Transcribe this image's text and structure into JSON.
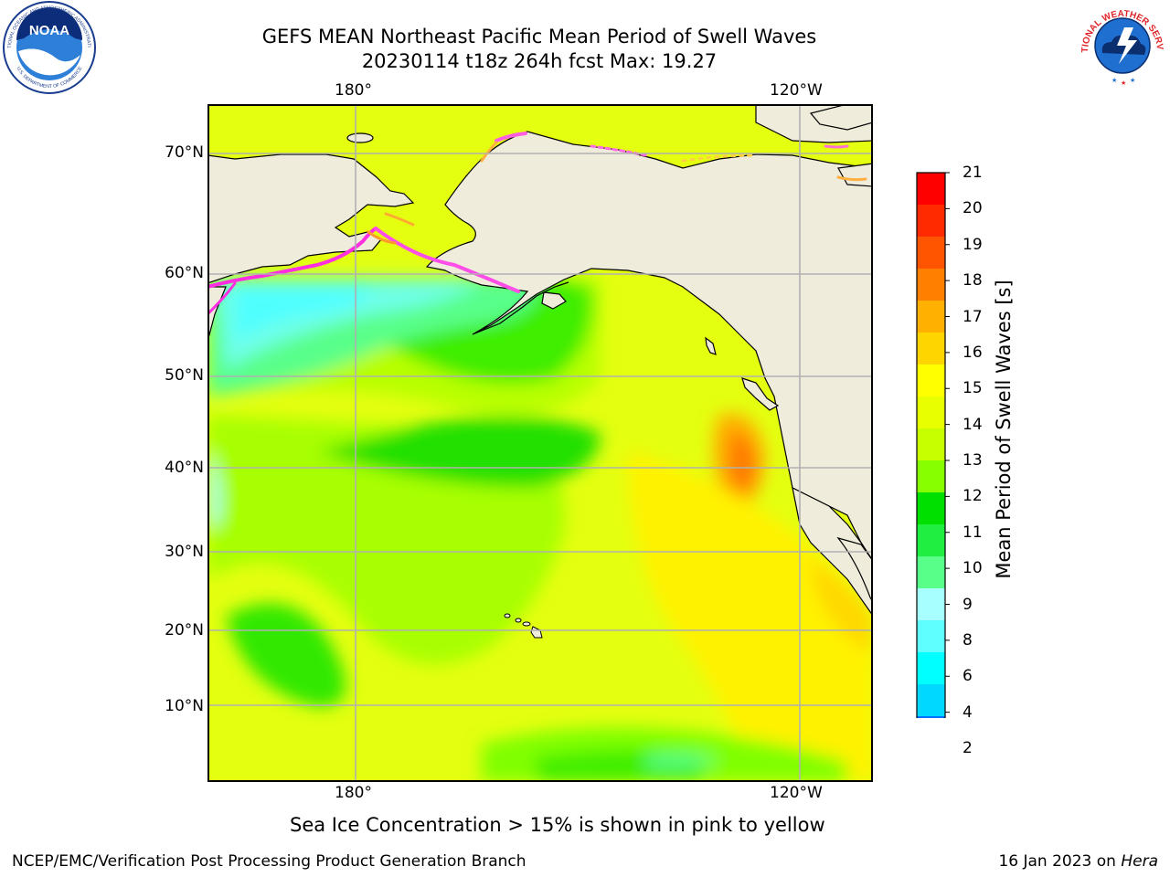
{
  "header": {
    "title_line1": "GEFS MEAN Northeast Pacific Mean Period of Swell Waves",
    "title_line2": "20230114 t18z 264h fcst   Max: 19.27"
  },
  "map": {
    "top_lon_labels": [
      "180°",
      "120°W"
    ],
    "bottom_lon_labels": [
      "180°",
      "120°W"
    ],
    "lat_labels": [
      "70°N",
      "60°N",
      "50°N",
      "40°N",
      "30°N",
      "20°N",
      "10°N"
    ]
  },
  "colorbar": {
    "label": "Mean Period of Swell Waves [s]",
    "ticks": [
      "21",
      "20",
      "19",
      "18",
      "17",
      "16",
      "15",
      "14",
      "13",
      "12",
      "11",
      "10",
      "9",
      "8",
      "6",
      "4",
      "2"
    ],
    "colors": [
      "#ff0000",
      "#ff2a00",
      "#ff5500",
      "#ff8000",
      "#ffb000",
      "#ffd500",
      "#ffff00",
      "#e8ff00",
      "#c8ff00",
      "#88ff00",
      "#00e000",
      "#20ee40",
      "#58ff88",
      "#a8ffff",
      "#60ffff",
      "#00ffff",
      "#00d8ff",
      "#0070ff"
    ],
    "under_color": "#0000ff"
  },
  "note": "Sea Ice Concentration > 15% is shown in pink to yellow",
  "footer": {
    "left": "NCEP/EMC/Verification Post Processing Product Generation Branch",
    "right_prefix": "16 Jan 2023 on ",
    "right_host": "Hera"
  },
  "logos": {
    "noaa_text": "NOAA",
    "noaa_ring_top": "NATIONAL OCEANIC AND ATMOSPHERIC ADMINISTRATION",
    "noaa_ring_bottom": "U.S. DEPARTMENT OF COMMERCE",
    "nws_ring_top": "NATIONAL WEATHER SERVICE"
  }
}
